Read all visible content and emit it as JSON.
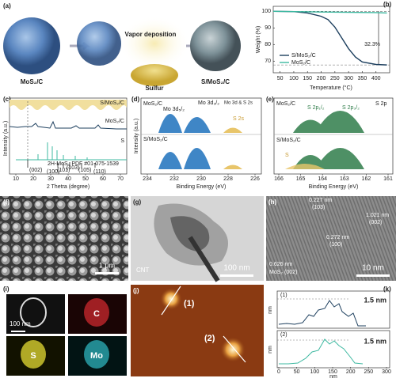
{
  "panel_labels": [
    "(a)",
    "(b)",
    "(c)",
    "(d)",
    "(e)",
    "(f)",
    "(g)",
    "(h)",
    "(i)",
    "(j)",
    "(k)"
  ],
  "a": {
    "left": "MoS₂/C",
    "process": "Vapor deposition",
    "reagent": "Sulfur",
    "right": "S/MoS₂/C"
  },
  "chart_data": {
    "type": "line",
    "xlabel": "Temperature (°C)",
    "ylabel": "Weight (%)",
    "xlim": [
      25,
      450
    ],
    "ylim": [
      63,
      103
    ],
    "xticks": [
      50,
      100,
      150,
      200,
      250,
      300,
      350,
      400
    ],
    "yticks": [
      70,
      80,
      90,
      100
    ],
    "series": [
      {
        "name": "S/MoS₂/C",
        "color": "#1d3f5e",
        "x": [
          25,
          100,
          150,
          200,
          225,
          250,
          275,
          300,
          325,
          350,
          400,
          440
        ],
        "values": [
          100,
          99.8,
          99,
          97,
          95,
          90.5,
          84,
          77.5,
          72.5,
          69.5,
          68,
          67.7
        ]
      },
      {
        "name": "MoS₂/C",
        "color": "#3cb8a0",
        "x": [
          25,
          200,
          400,
          440
        ],
        "values": [
          100,
          99.6,
          99.2,
          99
        ]
      }
    ],
    "annotation": "32.3%",
    "reference_lines": [
      100,
      67.7
    ],
    "legend": "lower left"
  },
  "c": {
    "traces": [
      "S/MoS₂/C",
      "MoS₂/C",
      "S"
    ],
    "reference": "2H-MoS₂ PDF #01-075-1539",
    "planes": [
      "(002)",
      "(100)",
      "(101)",
      "(103)",
      "(105)",
      "(110)"
    ],
    "xticks": [
      10,
      20,
      30,
      40,
      50,
      60,
      70
    ],
    "xlabel": "2 Thetra (degree)",
    "ylabel": "Intensity (a.u.)"
  },
  "d": {
    "top": "MoS₂/C",
    "peaks": [
      "Mo 3d₅/₂",
      "Mo 3d₃/₂",
      "Mo 3d & S 2s",
      "S 2s"
    ],
    "bottom": "S/MoS₂/C",
    "xticks": [
      234,
      232,
      230,
      228,
      226
    ],
    "xlabel": "Binding Energy (eV)",
    "ylabel": "Intensity (a.u.)"
  },
  "e": {
    "top": "MoS₂/C",
    "peaks": [
      "S 2p₁/₂",
      "S 2p₃/₂",
      "S 2p",
      "S"
    ],
    "bottom": "S/MoS₂/C",
    "xticks": [
      166,
      165,
      164,
      163,
      162,
      161
    ],
    "xlabel": "Binding Energy (eV)"
  },
  "f": {
    "scale": "1 μm"
  },
  "g": {
    "label": "CNT",
    "scale": "100 nm"
  },
  "h": {
    "fringes": [
      "0.227 nm",
      "(103)",
      "1.021 nm",
      "(002)",
      "0.272 nm",
      "(100)",
      "0.626 nm",
      "MoS₂ (002)"
    ],
    "scale": "10 nm"
  },
  "i": {
    "scale": "100 nm",
    "elements": [
      "C",
      "S",
      "Mo"
    ]
  },
  "j": {
    "markers": [
      "(1)",
      "(2)"
    ]
  },
  "k": {
    "profiles": [
      "(1)",
      "(2)"
    ],
    "height": "1.5 nm",
    "xticks": [
      0,
      50,
      100,
      150,
      200,
      250,
      300
    ],
    "xlabel": "nm",
    "ylabel": "nm"
  }
}
